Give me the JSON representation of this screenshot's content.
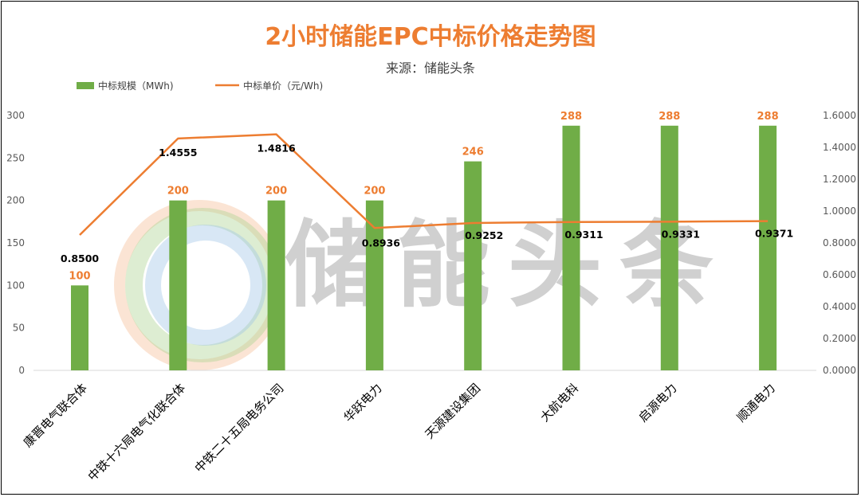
{
  "chart_data": {
    "type": "bar",
    "title": "2小时储能EPC中标价格走势图",
    "subtitle": "来源：储能头条",
    "watermark": "储能头条",
    "categories": [
      "康晋电气联合体",
      "中铁十六局电气化联合体",
      "中铁二十五局电务公司",
      "华跃电力",
      "天源建设集团",
      "大航电科",
      "启源电力",
      "顺通电力"
    ],
    "series": [
      {
        "name": "中标规模（MWh)",
        "type": "bar",
        "axis": "left",
        "color": "#70AD47",
        "values": [
          100,
          200,
          200,
          200,
          246,
          288,
          288,
          288
        ],
        "labels": [
          "100",
          "200",
          "200",
          "200",
          "246",
          "288",
          "288",
          "288"
        ]
      },
      {
        "name": "中标单价（元/Wh)",
        "type": "line",
        "axis": "right",
        "color": "#ED7D31",
        "values": [
          0.85,
          1.4555,
          1.4816,
          0.8936,
          0.9252,
          0.9311,
          0.9331,
          0.9371
        ],
        "labels": [
          "0.8500",
          "1.4555",
          "1.4816",
          "0.8936",
          "0.9252",
          "0.9311",
          "0.9331",
          "0.9371"
        ]
      }
    ],
    "y_left": {
      "min": 0,
      "max": 300,
      "ticks": [
        "0",
        "50",
        "100",
        "150",
        "200",
        "250",
        "300"
      ]
    },
    "y_right": {
      "min": 0,
      "max": 1.6,
      "ticks": [
        "0.0000",
        "0.2000",
        "0.4000",
        "0.6000",
        "0.8000",
        "1.0000",
        "1.2000",
        "1.4000",
        "1.6000"
      ]
    },
    "legend_position": "top-left",
    "grid": false
  }
}
